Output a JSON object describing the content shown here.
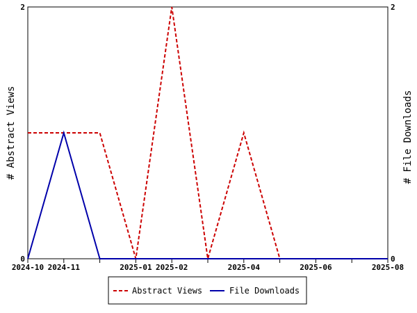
{
  "chart_data": {
    "type": "line",
    "x": [
      "2024-10",
      "2024-11",
      "2024-12",
      "2025-01",
      "2025-02",
      "2025-03",
      "2025-04",
      "2025-05",
      "2025-06",
      "2025-07",
      "2025-08"
    ],
    "x_tick_labels": [
      "2024-10",
      "2024-11",
      "2025-01",
      "2025-02",
      "2025-04",
      "2025-06",
      "2025-08"
    ],
    "series": [
      {
        "name": "Abstract Views",
        "axis": "left",
        "color": "#cc0000",
        "dash": "dashed",
        "values": [
          1,
          1,
          1,
          0,
          2,
          0,
          1,
          0,
          0,
          0,
          0
        ]
      },
      {
        "name": "File Downloads",
        "axis": "right",
        "color": "#0000aa",
        "dash": "solid",
        "values": [
          0,
          1,
          0,
          0,
          0,
          0,
          0,
          0,
          0,
          0,
          0
        ]
      }
    ],
    "ylabel": "# Abstract Views",
    "y2label": "# File Downloads",
    "ylim": [
      0,
      2
    ],
    "y2lim": [
      0,
      2
    ],
    "y_tick_labels": [
      "0",
      "2"
    ],
    "y2_tick_labels": [
      "0",
      "2"
    ],
    "grid": false,
    "legend_position": "bottom-center"
  }
}
